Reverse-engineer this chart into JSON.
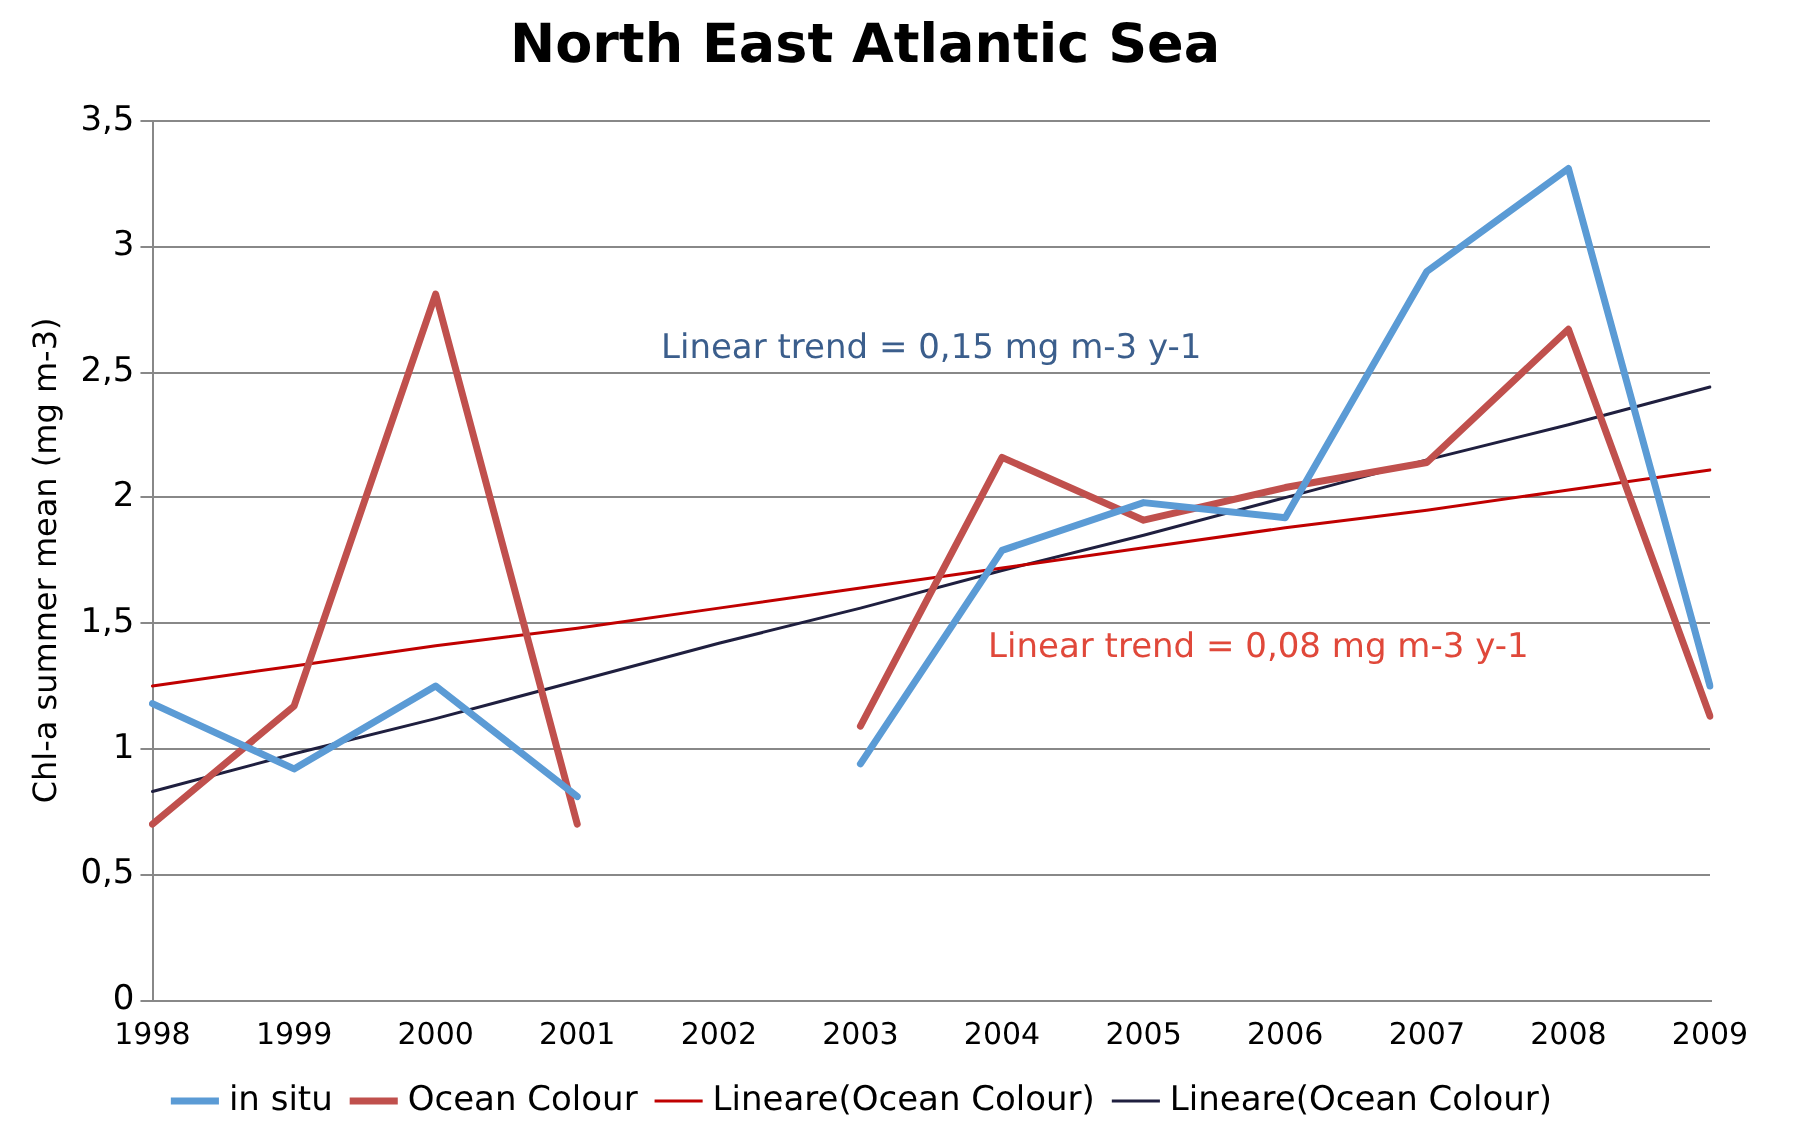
{
  "chart_data": {
    "type": "line",
    "title": "North East Atlantic Sea",
    "ylabel": "Chl-a summer mean (mg m-3)",
    "categories": [
      "1998",
      "1999",
      "2000",
      "2001",
      "2002",
      "2003",
      "2004",
      "2005",
      "2006",
      "2007",
      "2008",
      "2009"
    ],
    "series": [
      {
        "name": "in situ",
        "color": "#5b9bd5",
        "values": [
          1.18,
          0.92,
          1.25,
          0.81,
          null,
          0.94,
          1.79,
          1.98,
          1.92,
          2.9,
          3.31,
          1.25
        ]
      },
      {
        "name": "Ocean Colour",
        "color": "#c0504d",
        "values": [
          0.7,
          1.17,
          2.81,
          0.7,
          null,
          1.09,
          2.16,
          1.91,
          2.04,
          2.14,
          2.67,
          1.13
        ]
      },
      {
        "name": "Lineare(Ocean Colour)",
        "color": "#c00000",
        "values": [
          1.25,
          1.33,
          1.41,
          1.48,
          1.56,
          1.64,
          1.72,
          1.8,
          1.88,
          1.95,
          2.03,
          2.11
        ]
      },
      {
        "name": "Lineare(Ocean Colour)",
        "color": "#1f1f3f",
        "values": [
          0.83,
          0.98,
          1.12,
          1.27,
          1.42,
          1.56,
          1.71,
          1.85,
          2.0,
          2.15,
          2.29,
          2.44
        ]
      }
    ],
    "ylim": [
      0,
      3.5
    ],
    "yticks": [
      0,
      {
        "value": 0.5,
        "label": "0,5"
      },
      1,
      {
        "value": 1.5,
        "label": "1,5"
      },
      2,
      {
        "value": 2.5,
        "label": "2,5"
      },
      3,
      {
        "value": 3.5,
        "label": "3,5"
      }
    ],
    "annotations": [
      "Linear trend = 0,15 mg m-3 y-1",
      "Linear trend = 0,08 mg m-3 y-1"
    ],
    "grid": "y",
    "legend": "bottom",
    "marker": "none",
    "line_style": "solid"
  }
}
